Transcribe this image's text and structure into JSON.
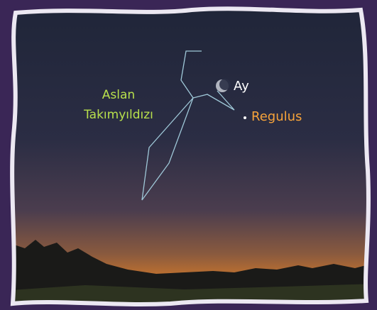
{
  "constellation": {
    "label": [
      "Aslan",
      "Takımyıldızı"
    ]
  },
  "moon": {
    "label": "Ay"
  },
  "star": {
    "label": "Regulus"
  }
}
